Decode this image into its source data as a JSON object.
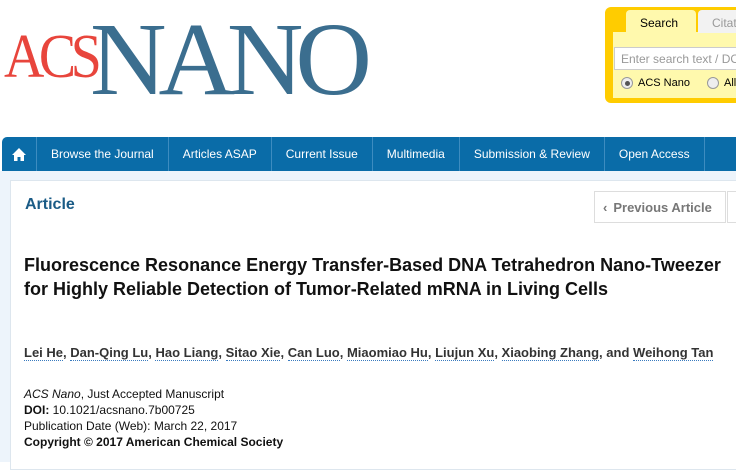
{
  "logo": {
    "acs": "ACS",
    "nano": "NANO"
  },
  "search": {
    "tabs": [
      "Search",
      "Citation"
    ],
    "placeholder": "Enter search text / DOI",
    "radios": [
      {
        "label": "ACS Nano",
        "selected": true
      },
      {
        "label": "All",
        "selected": false
      }
    ]
  },
  "nav": {
    "items": [
      "Browse the Journal",
      "Articles ASAP",
      "Current Issue",
      "Multimedia",
      "Submission & Review",
      "Open Access"
    ]
  },
  "article": {
    "label": "Article",
    "prev": "Previous Article",
    "title": "Fluorescence Resonance Energy Transfer-Based DNA Tetrahedron Nano-Tweezer for Highly Reliable Detection of Tumor-Related mRNA in Living Cells",
    "authors": [
      "Lei He",
      "Dan-Qing Lu",
      "Hao Liang",
      "Sitao Xie",
      "Can Luo",
      "Miaomiao Hu",
      "Liujun Xu",
      "Xiaobing Zhang",
      "Weihong Tan"
    ],
    "and": "and",
    "journal": "ACS Nano",
    "status": ", Just Accepted Manuscript",
    "doi_label": "DOI:",
    "doi": " 10.1021/acsnano.7b00725",
    "pubdate": "Publication Date (Web): March 22, 2017",
    "copyright": "Copyright © 2017 American Chemical Society"
  }
}
